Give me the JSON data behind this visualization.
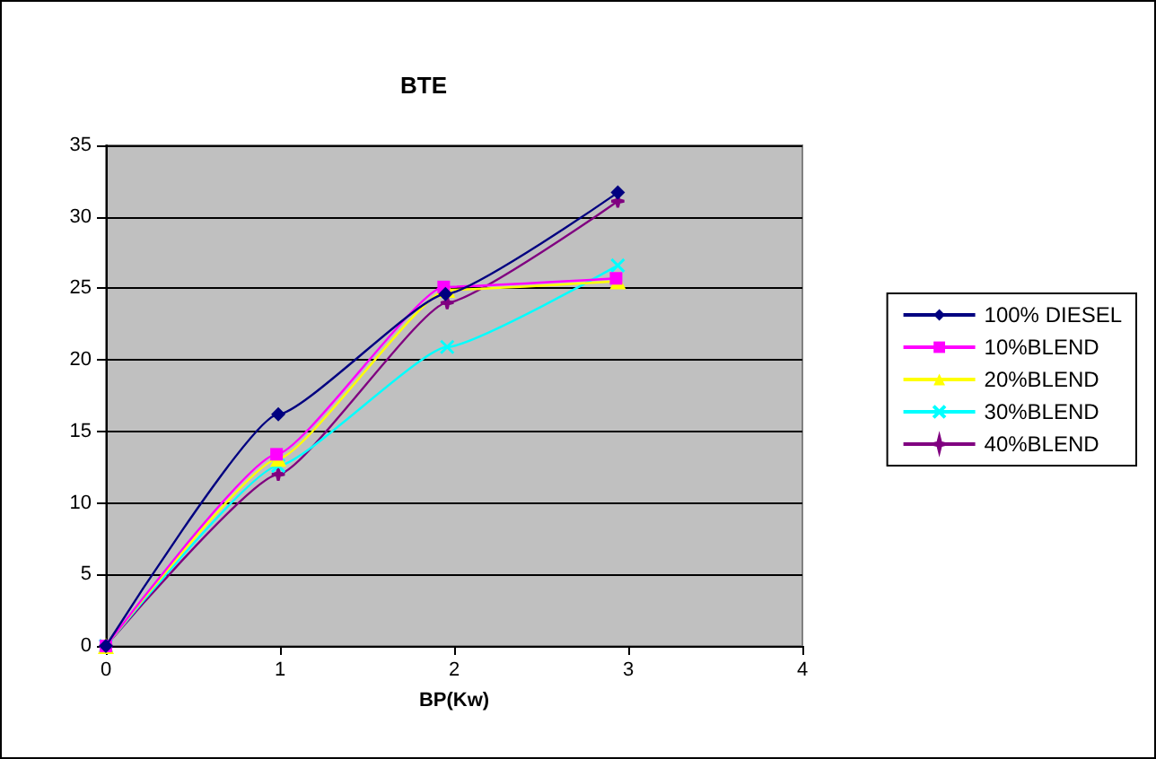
{
  "chart_data": {
    "type": "line",
    "title": "BTE",
    "xlabel": "BP(Kw)",
    "xlim": [
      0,
      4
    ],
    "xticks": [
      0,
      1,
      2,
      3,
      4
    ],
    "ylim": [
      0,
      35
    ],
    "yticks": [
      0,
      5,
      10,
      15,
      20,
      25,
      30,
      35
    ],
    "grid": "y",
    "legend": "right",
    "line_style": "solid",
    "series": [
      {
        "name": "100% DIESEL",
        "color": "#000080",
        "marker": "diamond",
        "x": [
          0,
          0.99,
          1.95,
          2.94
        ],
        "values": [
          0,
          16.2,
          24.6,
          31.7
        ]
      },
      {
        "name": "10%BLEND",
        "color": "#ff00ff",
        "marker": "square",
        "x": [
          0,
          0.98,
          1.94,
          2.93
        ],
        "values": [
          0,
          13.4,
          25.1,
          25.7
        ]
      },
      {
        "name": "20%BLEND",
        "color": "#ffff00",
        "marker": "triangle",
        "x": [
          0,
          0.99,
          1.96,
          2.94
        ],
        "values": [
          0,
          13.1,
          24.9,
          25.5
        ]
      },
      {
        "name": "30%BLEND",
        "color": "#00ffff",
        "marker": "cross",
        "x": [
          0,
          0.99,
          1.96,
          2.94
        ],
        "values": [
          0,
          12.6,
          20.9,
          26.6
        ]
      },
      {
        "name": "40%BLEND",
        "color": "#800080",
        "marker": "star",
        "x": [
          0,
          0.99,
          1.96,
          2.94
        ],
        "values": [
          0,
          12.0,
          24.0,
          31.1
        ]
      }
    ]
  }
}
